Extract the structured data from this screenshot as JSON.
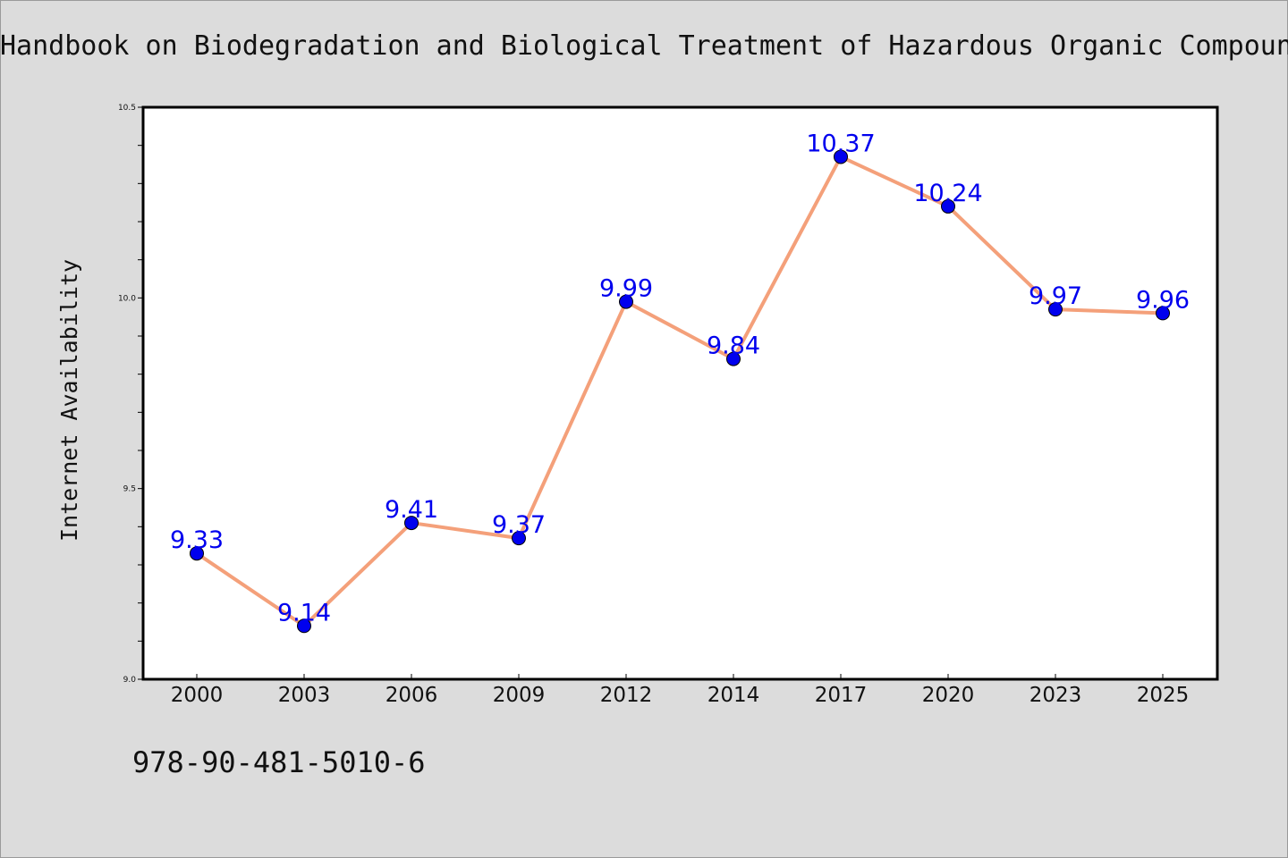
{
  "header": {
    "title": "Handbook on Biodegradation and Biological Treatment of Hazardous Organic Compoun"
  },
  "footer": {
    "isbn": "978-90-481-5010-6"
  },
  "colors": {
    "background": "#dcdcdc",
    "plot_background": "#ffffff",
    "line": "#f4a07a",
    "marker": "#0000ee",
    "data_label": "#0000ee"
  },
  "chart_data": {
    "type": "line",
    "categories": [
      "2000",
      "2003",
      "2006",
      "2009",
      "2012",
      "2014",
      "2017",
      "2020",
      "2023",
      "2025"
    ],
    "series": [
      {
        "values": [
          9.33,
          9.14,
          9.41,
          9.37,
          9.99,
          9.84,
          10.37,
          10.24,
          9.97,
          9.96
        ]
      }
    ],
    "data_labels": [
      "9.33",
      "9.14",
      "9.41",
      "9.37",
      "9.99",
      "9.84",
      "10.37",
      "10.24",
      "9.97",
      "9.96"
    ],
    "ylabel": "Internet Availability",
    "xlabel": "",
    "ylim": [
      9.0,
      10.5
    ],
    "yticks": [
      "9.0",
      "9.5",
      "10.0",
      "10.5"
    ],
    "grid": false,
    "legend": "none"
  }
}
